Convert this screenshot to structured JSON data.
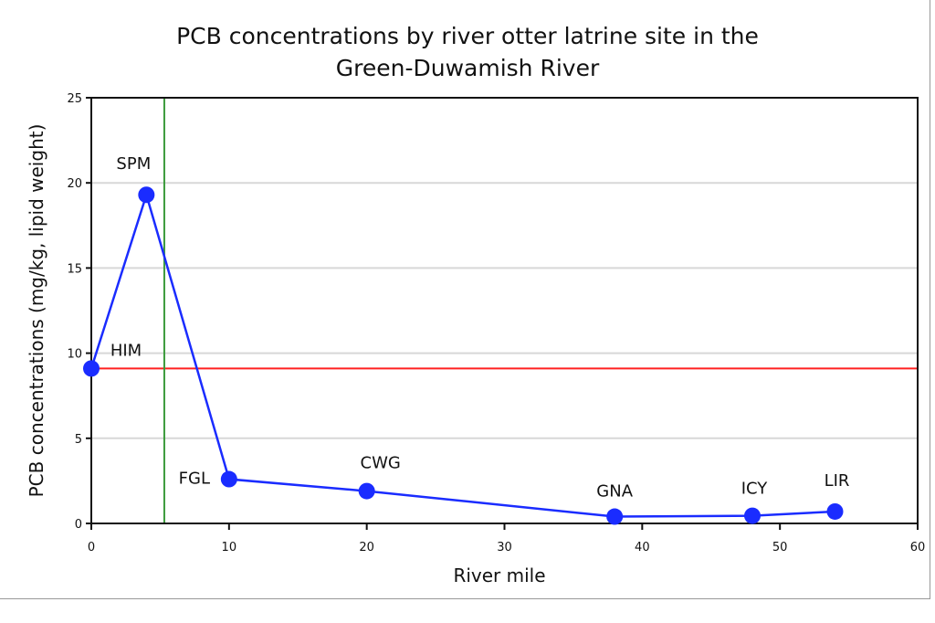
{
  "chart_data": {
    "type": "line",
    "title_line1": "PCB concentrations by river otter latrine site in the",
    "title_line2": "Green-Duwamish River",
    "xlabel": "River mile",
    "ylabel": "PCB concentrations (mg/kg, lipid weight)",
    "xlim": [
      0,
      60
    ],
    "ylim": [
      0,
      25
    ],
    "xticks": [
      0,
      10,
      20,
      30,
      40,
      50,
      60
    ],
    "yticks": [
      0,
      5,
      10,
      15,
      20,
      25
    ],
    "grid": "horizontal",
    "points": [
      {
        "label": "HIM",
        "x": 0,
        "y": 9.1
      },
      {
        "label": "SPM",
        "x": 4,
        "y": 19.3
      },
      {
        "label": "FGL",
        "x": 10,
        "y": 2.6
      },
      {
        "label": "CWG",
        "x": 20,
        "y": 1.9
      },
      {
        "label": "GNA",
        "x": 38,
        "y": 0.4
      },
      {
        "label": "ICY",
        "x": 48,
        "y": 0.45
      },
      {
        "label": "LIR",
        "x": 54,
        "y": 0.7
      }
    ],
    "reference_lines": [
      {
        "orientation": "horizontal",
        "value": 9.1,
        "color": "#ff2020"
      },
      {
        "orientation": "vertical",
        "value": 5.3,
        "color": "#3a9a3a"
      }
    ],
    "series_color": "#1a2cff"
  }
}
